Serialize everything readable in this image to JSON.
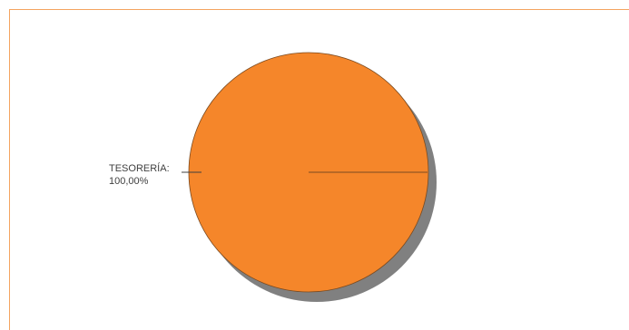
{
  "chart_data": {
    "type": "pie",
    "categories": [
      "TESORERÍA"
    ],
    "values": [
      100
    ],
    "data_labels": [
      {
        "line1": "TESORERÍA:",
        "line2": "100,00%"
      }
    ],
    "colors": {
      "slice": "#f5862a",
      "shadow": "#808080",
      "frame_border": "#f4a460",
      "label_text": "#404040"
    },
    "title": "",
    "legend": "none"
  }
}
